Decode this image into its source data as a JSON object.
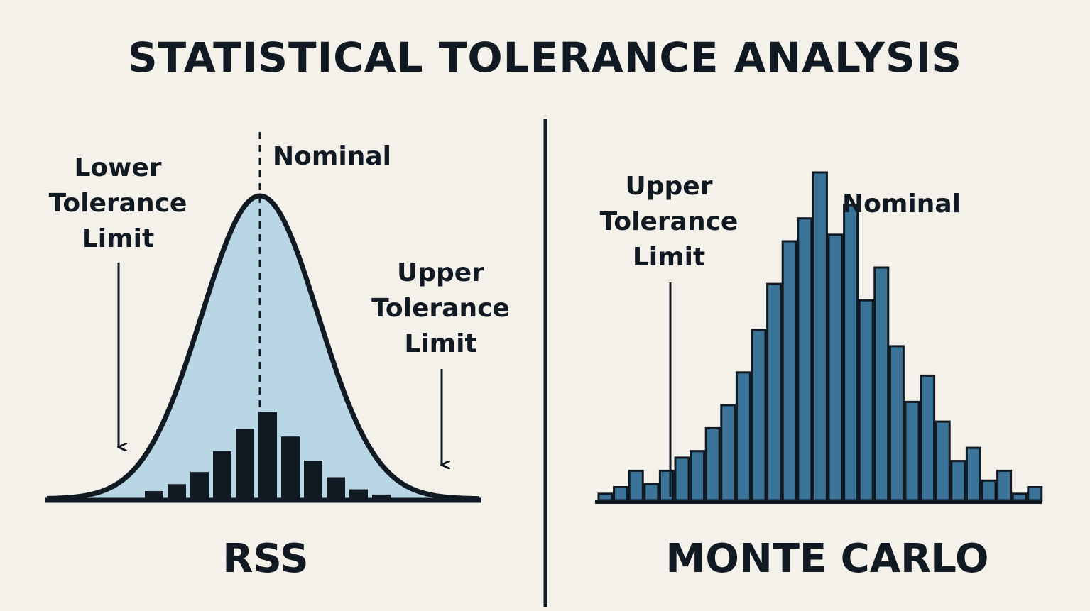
{
  "title": "STATISTICAL TOLERANCE ANALYSIS",
  "colors": {
    "background": "#f4f0ea",
    "ink": "#111a22",
    "bell_fill": "#b9d6e4",
    "histogram_bar": "#3b7398"
  },
  "rss": {
    "method_label": "RSS",
    "lower_limit_label": [
      "Lower",
      "Tolerance",
      "Limit"
    ],
    "upper_limit_label": [
      "Upper",
      "Tolerance",
      "Limit"
    ],
    "nominal_label": "Nominal",
    "histogram_relative_heights": [
      0.09,
      0.17,
      0.31,
      0.55,
      0.81,
      1.0,
      0.72,
      0.44,
      0.25,
      0.11,
      0.05
    ]
  },
  "monte_carlo": {
    "method_label": "MONTE CARLO",
    "upper_limit_label": [
      "Upper",
      "Tolerance",
      "Limit"
    ],
    "nominal_label": "Nominal",
    "histogram_relative_heights": [
      0.02,
      0.04,
      0.09,
      0.05,
      0.09,
      0.13,
      0.15,
      0.22,
      0.29,
      0.39,
      0.52,
      0.66,
      0.79,
      0.86,
      1.0,
      0.81,
      0.9,
      0.61,
      0.71,
      0.47,
      0.3,
      0.38,
      0.24,
      0.12,
      0.16,
      0.06,
      0.09,
      0.02,
      0.04
    ]
  }
}
